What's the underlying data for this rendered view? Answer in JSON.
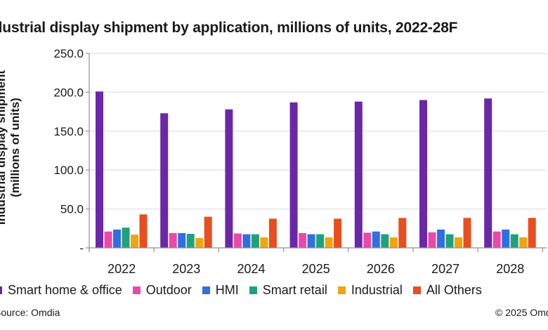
{
  "chart_data": {
    "type": "bar",
    "title": "ndustrial display shipment by application, millions of units, 2022-28F",
    "xlabel": "",
    "ylabel": "Industrial display shipment (millions of units)",
    "ylabel_lines": [
      "Industrial display shipment",
      "(millions of units)"
    ],
    "ylim": [
      0,
      250
    ],
    "yticks": [
      0,
      50,
      100,
      150,
      200,
      250
    ],
    "ytick_labels": [
      "-",
      "50.0",
      "100.0",
      "150.0",
      "200.0",
      "250.0"
    ],
    "grid": true,
    "legend_position": "bottom",
    "categories": [
      "2022",
      "2023",
      "2024",
      "2025",
      "2026",
      "2027",
      "2028"
    ],
    "series": [
      {
        "name": "Smart home & office",
        "color": "#6a28a8",
        "values": [
          201,
          173,
          178,
          187,
          188,
          190,
          192
        ]
      },
      {
        "name": "Outdoor",
        "color": "#e84aa8",
        "values": [
          21,
          19,
          18.5,
          19,
          19.5,
          20,
          21
        ]
      },
      {
        "name": "HMI",
        "color": "#2f6fe0",
        "values": [
          23.5,
          19,
          17.5,
          17.5,
          21,
          23.5,
          23.5
        ]
      },
      {
        "name": "Smart retail",
        "color": "#1fa07e",
        "values": [
          26,
          18,
          17.5,
          17.5,
          17.5,
          17.5,
          17.5
        ]
      },
      {
        "name": "Industrial",
        "color": "#f0a410",
        "values": [
          17,
          12.5,
          13.5,
          13.5,
          13.5,
          13.5,
          13.5
        ]
      },
      {
        "name": "All Others",
        "color": "#e84e1f",
        "values": [
          43,
          40,
          37.5,
          37.5,
          38.5,
          38.5,
          38.5
        ]
      }
    ]
  },
  "legend_labels": [
    "Smart home & office",
    "Outdoor",
    "HMI",
    "Smart retail",
    "Industrial",
    "All Others"
  ],
  "footer": {
    "source": "Source: Omdia",
    "copyright": "© 2025 Omdia"
  }
}
